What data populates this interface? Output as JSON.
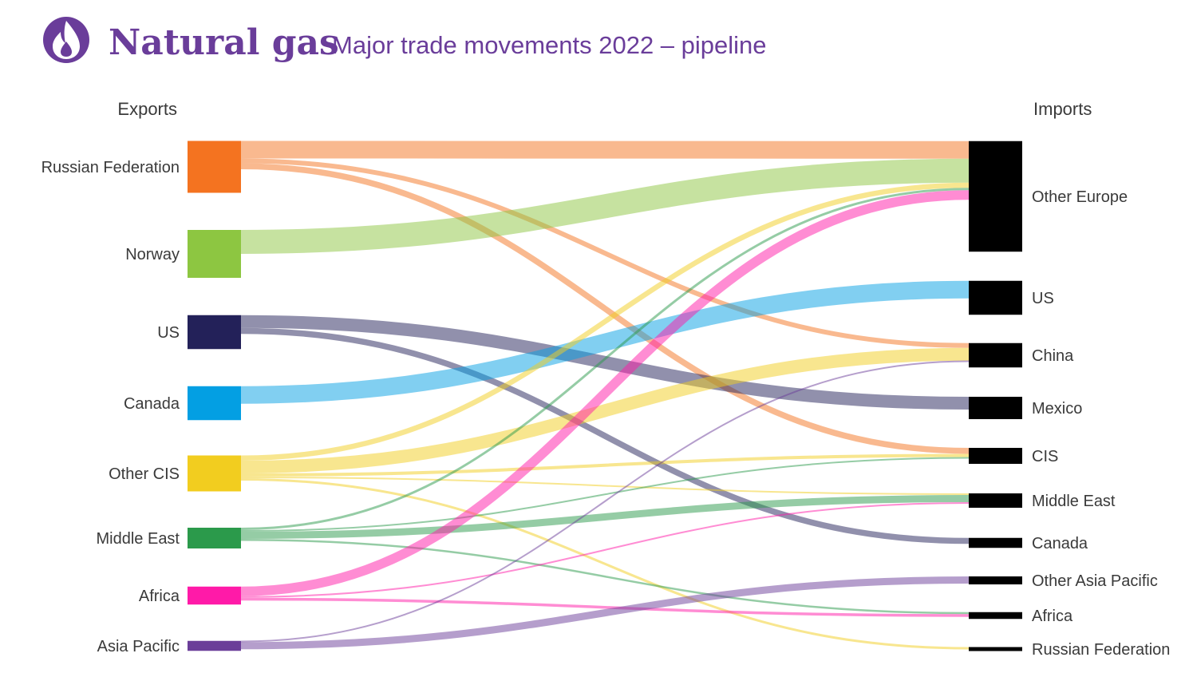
{
  "header": {
    "title": "Natural gas",
    "subtitle": "Major trade movements 2022 – pipeline",
    "icon": "flame-icon",
    "accent_color": "#6a3d9a"
  },
  "chart_data": {
    "type": "sankey",
    "title": "Natural gas",
    "subtitle": "Major trade movements 2022 – pipeline",
    "left_heading": "Exports",
    "right_heading": "Imports",
    "exporters": [
      {
        "name": "Russian Federation",
        "color": "#f47320",
        "value": 13.0
      },
      {
        "name": "Norway",
        "color": "#8dc641",
        "value": 12.0
      },
      {
        "name": "US",
        "color": "#232159",
        "value": 8.5
      },
      {
        "name": "Canada",
        "color": "#039fe3",
        "value": 8.5
      },
      {
        "name": "Other CIS",
        "color": "#f2cd1f",
        "value": 9.0
      },
      {
        "name": "Middle East",
        "color": "#2b9a4b",
        "value": 5.2
      },
      {
        "name": "Africa",
        "color": "#ff1aa8",
        "value": 4.5
      },
      {
        "name": "Asia Pacific",
        "color": "#6b3e99",
        "value": 2.5
      }
    ],
    "importers": [
      {
        "name": "Other Europe",
        "value": 27.7
      },
      {
        "name": "US",
        "value": 8.5
      },
      {
        "name": "China",
        "value": 6.1
      },
      {
        "name": "Mexico",
        "value": 5.6
      },
      {
        "name": "CIS",
        "value": 4.0
      },
      {
        "name": "Middle East",
        "value": 3.6
      },
      {
        "name": "Canada",
        "value": 2.5
      },
      {
        "name": "Other Asia Pacific",
        "value": 2.0
      },
      {
        "name": "Africa",
        "value": 1.7
      },
      {
        "name": "Russian Federation",
        "value": 1.0
      }
    ],
    "flows": [
      {
        "from": "Russian Federation",
        "to": "China",
        "value": 1.2
      },
      {
        "from": "Russian Federation",
        "to": "CIS",
        "value": 1.5
      },
      {
        "from": "Russian Federation",
        "to": "Other Europe",
        "value": 4.4
      },
      {
        "from": "Norway",
        "to": "Other Europe",
        "value": 6.0
      },
      {
        "from": "US",
        "to": "Canada",
        "value": 1.5
      },
      {
        "from": "US",
        "to": "Mexico",
        "value": 3.2
      },
      {
        "from": "Canada",
        "to": "US",
        "value": 4.4
      },
      {
        "from": "Other CIS",
        "to": "Other Europe",
        "value": 1.3
      },
      {
        "from": "Other CIS",
        "to": "China",
        "value": 3.2
      },
      {
        "from": "Other CIS",
        "to": "CIS",
        "value": 0.8
      },
      {
        "from": "Other CIS",
        "to": "Middle East",
        "value": 0.4
      },
      {
        "from": "Other CIS",
        "to": "Russian Federation",
        "value": 0.6
      },
      {
        "from": "Middle East",
        "to": "Other Europe",
        "value": 0.6
      },
      {
        "from": "Middle East",
        "to": "CIS",
        "value": 0.4
      },
      {
        "from": "Middle East",
        "to": "Middle East",
        "value": 1.8
      },
      {
        "from": "Middle East",
        "to": "Africa",
        "value": 0.5
      },
      {
        "from": "Africa",
        "to": "Other Europe",
        "value": 2.4
      },
      {
        "from": "Africa",
        "to": "Middle East",
        "value": 0.4
      },
      {
        "from": "Africa",
        "to": "Africa",
        "value": 0.7
      },
      {
        "from": "Asia Pacific",
        "to": "China",
        "value": 0.3
      },
      {
        "from": "Asia Pacific",
        "to": "Other Asia Pacific",
        "value": 1.8
      }
    ]
  }
}
